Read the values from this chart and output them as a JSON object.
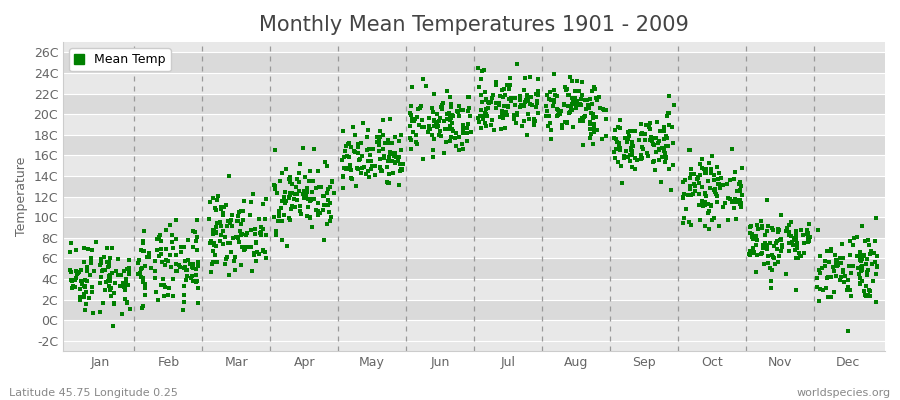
{
  "title": "Monthly Mean Temperatures 1901 - 2009",
  "ylabel": "Temperature",
  "xlabel_labels": [
    "Jan",
    "Feb",
    "Mar",
    "Apr",
    "May",
    "Jun",
    "Jul",
    "Aug",
    "Sep",
    "Oct",
    "Nov",
    "Dec"
  ],
  "ytick_labels": [
    "-2C",
    "0C",
    "2C",
    "4C",
    "6C",
    "8C",
    "10C",
    "12C",
    "14C",
    "16C",
    "18C",
    "20C",
    "22C",
    "24C",
    "26C"
  ],
  "ytick_values": [
    -2,
    0,
    2,
    4,
    6,
    8,
    10,
    12,
    14,
    16,
    18,
    20,
    22,
    24,
    26
  ],
  "ylim": [
    -3,
    27
  ],
  "dot_color": "#008000",
  "dot_size": 6,
  "figure_bg_color": "#FFFFFF",
  "plot_bg_color": "#E8E8E8",
  "plot_bg_color_alt": "#DADADA",
  "legend_label": "Mean Temp",
  "footer_left": "Latitude 45.75 Longitude 0.25",
  "footer_right": "worldspecies.org",
  "title_fontsize": 15,
  "label_fontsize": 9,
  "tick_fontsize": 9,
  "footer_fontsize": 8,
  "monthly_means": [
    4.2,
    5.0,
    8.5,
    12.0,
    15.5,
    19.0,
    21.0,
    20.5,
    17.0,
    12.5,
    7.5,
    5.2
  ],
  "monthly_stds": [
    1.8,
    2.0,
    1.8,
    1.8,
    1.6,
    1.5,
    1.5,
    1.5,
    1.5,
    1.5,
    1.5,
    1.8
  ],
  "years": 109,
  "seed": 42,
  "dashed_line_color": "#999999",
  "grid_line_color": "#FFFFFF",
  "spine_color": "#CCCCCC",
  "tick_color": "#666666",
  "text_color": "#444444"
}
